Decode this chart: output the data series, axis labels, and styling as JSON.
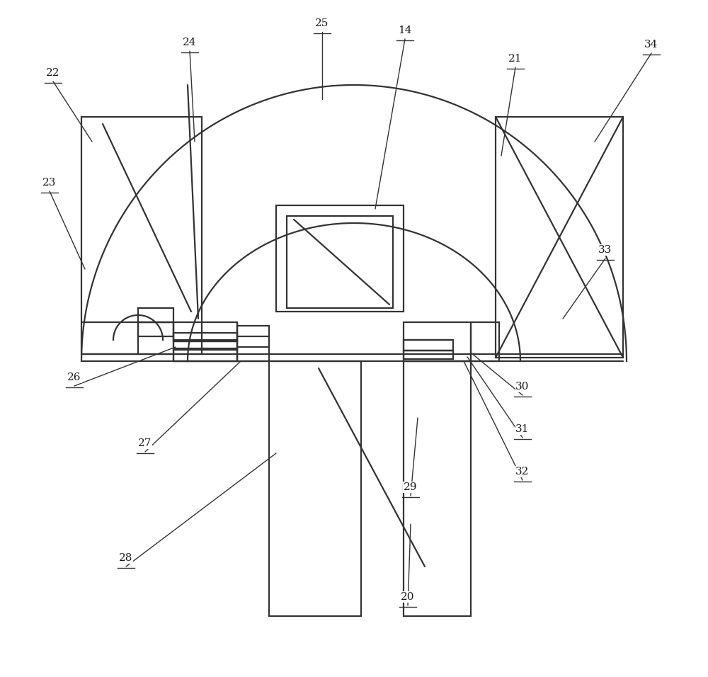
{
  "bg": "#ffffff",
  "lc": "#333333",
  "lw": 1.6,
  "tlw": 1.0,
  "fs": 11
}
